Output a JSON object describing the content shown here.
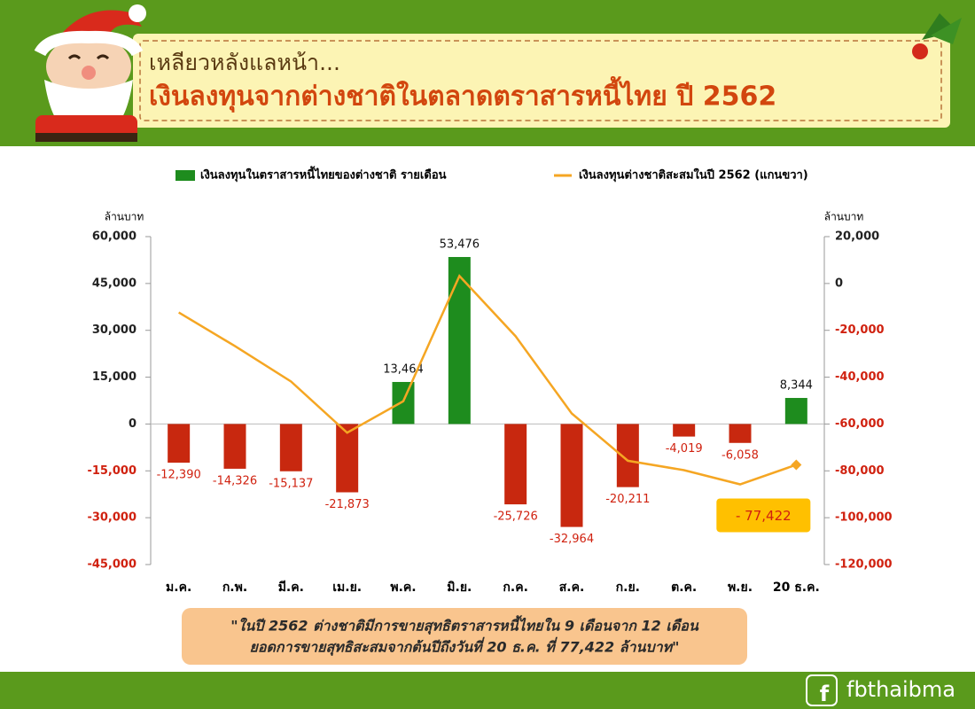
{
  "header": {
    "subtitle": "เหลียวหลังแลหน้า...",
    "title": "เงินลงทุนจากต่างชาติในตลาดตราสารหนี้ไทย ปี 2562"
  },
  "chart_data": {
    "type": "bar",
    "categories": [
      "ม.ค.",
      "ก.พ.",
      "มี.ค.",
      "เม.ย.",
      "พ.ค.",
      "มิ.ย.",
      "ก.ค.",
      "ส.ค.",
      "ก.ย.",
      "ต.ค.",
      "พ.ย.",
      "20 ธ.ค."
    ],
    "series": [
      {
        "name": "เงินลงทุนในตราสารหนี้ไทยของต่างชาติ รายเดือน",
        "type": "bar",
        "color": "#1e8c1e",
        "negative_color": "#c8280f",
        "values": [
          -12390,
          -14326,
          -15137,
          -21873,
          13464,
          53476,
          -25726,
          -32964,
          -20211,
          -4019,
          -6058,
          8344
        ],
        "value_labels": [
          "-12,390",
          "-14,326",
          "-15,137",
          "-21,873",
          "13,464",
          "53,476",
          "-25,726",
          "-32,964",
          "-20,211",
          "-4,019",
          "-6,058",
          "8,344"
        ]
      },
      {
        "name": "เงินลงทุนต่างชาติสะสมในปี 2562 (แกนขวา)",
        "type": "line",
        "axis": "y2",
        "color": "#f5a623",
        "values": [
          -12390,
          -26716,
          -41853,
          -63726,
          -50262,
          3214,
          -22512,
          -55476,
          -75687,
          -79706,
          -85764,
          -77422
        ],
        "value_labels": [
          null,
          null,
          null,
          null,
          null,
          null,
          null,
          null,
          null,
          null,
          null,
          "- 77,422"
        ]
      }
    ],
    "ylabel": "ล้านบาท",
    "y2label": "ล้านบาท",
    "ylim": [
      -45000,
      60000
    ],
    "yticks": [
      {
        "value": -45000,
        "label": "-45,000"
      },
      {
        "value": -30000,
        "label": "-30,000"
      },
      {
        "value": -15000,
        "label": "-15,000"
      },
      0,
      {
        "value": 15000,
        "label": "15,000"
      },
      {
        "value": 30000,
        "label": "30,000"
      },
      {
        "value": 45000,
        "label": "45,000"
      },
      {
        "value": 60000,
        "label": "60,000"
      }
    ],
    "y2lim": [
      -120000,
      20000
    ],
    "y2ticks": [
      {
        "value": -120000,
        "label": "-120,000"
      },
      {
        "value": -100000,
        "label": "-100,000"
      },
      {
        "value": -80000,
        "label": "-80,000"
      },
      {
        "value": -60000,
        "label": "-60,000"
      },
      {
        "value": -40000,
        "label": "-40,000"
      },
      {
        "value": -20000,
        "label": "-20,000"
      },
      0,
      {
        "value": 20000,
        "label": "20,000"
      }
    ],
    "grid": false
  },
  "note": [
    "\"ในปี 2562 ต่างชาติมีการขายสุทธิตราสารหนี้ไทยใน 9 เดือนจาก 12 เดือน",
    "ยอดการขายสุทธิสะสมจากต้นปีถึงวันที่ 20 ธ.ค. ที่ 77,422 ล้านบาท\""
  ],
  "footer": {
    "brand": "fbthaibma"
  }
}
